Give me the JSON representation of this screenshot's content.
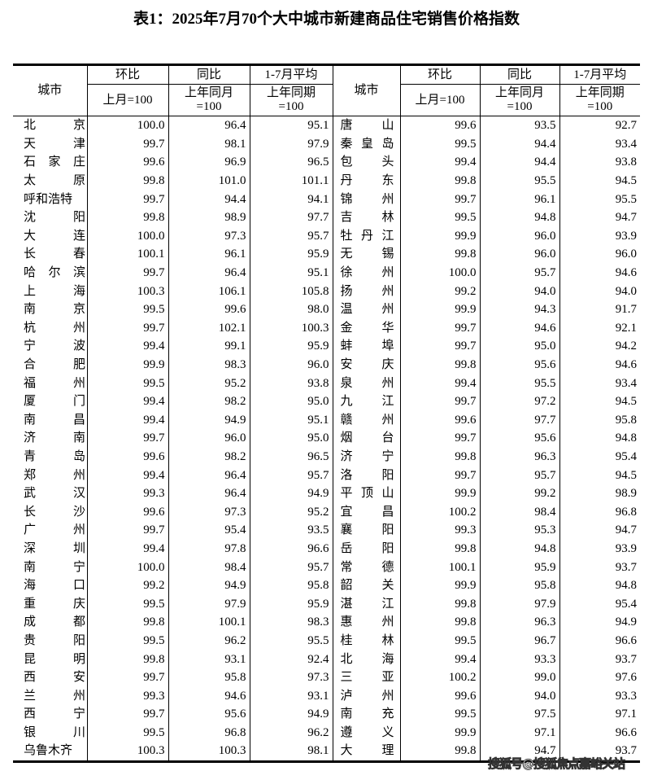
{
  "title": "表1：2025年7月70个大中城市新建商品住宅销售价格指数",
  "header": {
    "city": "城市",
    "mom": "环比",
    "yoy": "同比",
    "avg": "1-7月平均",
    "mom_base": "上月=100",
    "yoy_base_1": "上年同月",
    "yoy_base_2": "=100",
    "avg_base_1": "上年同期",
    "avg_base_2": "=100"
  },
  "rows": [
    {
      "left": [
        "北京",
        "100.0",
        "96.4",
        "95.1"
      ],
      "right": [
        "唐山",
        "99.6",
        "93.5",
        "92.7"
      ]
    },
    {
      "left": [
        "天津",
        "99.7",
        "98.1",
        "97.9"
      ],
      "right": [
        "秦皇岛",
        "99.5",
        "94.4",
        "93.4"
      ]
    },
    {
      "left": [
        "石家庄",
        "99.6",
        "96.9",
        "96.5"
      ],
      "right": [
        "包头",
        "99.4",
        "94.4",
        "93.8"
      ]
    },
    {
      "left": [
        "太原",
        "99.8",
        "101.0",
        "101.1"
      ],
      "right": [
        "丹东",
        "99.8",
        "95.5",
        "94.5"
      ]
    },
    {
      "left": [
        "呼和浩特",
        "99.7",
        "94.4",
        "94.1"
      ],
      "right": [
        "锦州",
        "99.7",
        "96.1",
        "95.5"
      ]
    },
    {
      "left": [
        "沈阳",
        "99.8",
        "98.9",
        "97.7"
      ],
      "right": [
        "吉林",
        "99.5",
        "94.8",
        "94.7"
      ]
    },
    {
      "left": [
        "大连",
        "100.0",
        "97.3",
        "95.7"
      ],
      "right": [
        "牡丹江",
        "99.9",
        "96.0",
        "93.9"
      ]
    },
    {
      "left": [
        "长春",
        "100.1",
        "96.1",
        "95.9"
      ],
      "right": [
        "无锡",
        "99.8",
        "96.0",
        "96.0"
      ]
    },
    {
      "left": [
        "哈尔滨",
        "99.7",
        "96.4",
        "95.1"
      ],
      "right": [
        "徐州",
        "100.0",
        "95.7",
        "94.6"
      ]
    },
    {
      "left": [
        "上海",
        "100.3",
        "106.1",
        "105.8"
      ],
      "right": [
        "扬州",
        "99.2",
        "94.0",
        "94.0"
      ]
    },
    {
      "left": [
        "南京",
        "99.5",
        "99.6",
        "98.0"
      ],
      "right": [
        "温州",
        "99.9",
        "94.3",
        "91.7"
      ]
    },
    {
      "left": [
        "杭州",
        "99.7",
        "102.1",
        "100.3"
      ],
      "right": [
        "金华",
        "99.7",
        "94.6",
        "92.1"
      ]
    },
    {
      "left": [
        "宁波",
        "99.4",
        "99.1",
        "95.9"
      ],
      "right": [
        "蚌埠",
        "99.7",
        "95.0",
        "94.2"
      ]
    },
    {
      "left": [
        "合肥",
        "99.9",
        "98.3",
        "96.0"
      ],
      "right": [
        "安庆",
        "99.8",
        "95.6",
        "94.6"
      ]
    },
    {
      "left": [
        "福州",
        "99.5",
        "95.2",
        "93.8"
      ],
      "right": [
        "泉州",
        "99.4",
        "95.5",
        "93.4"
      ]
    },
    {
      "left": [
        "厦门",
        "99.4",
        "98.2",
        "95.0"
      ],
      "right": [
        "九江",
        "99.7",
        "97.2",
        "94.5"
      ]
    },
    {
      "left": [
        "南昌",
        "99.4",
        "94.9",
        "95.1"
      ],
      "right": [
        "赣州",
        "99.6",
        "97.7",
        "95.8"
      ]
    },
    {
      "left": [
        "济南",
        "99.7",
        "96.0",
        "95.0"
      ],
      "right": [
        "烟台",
        "99.7",
        "95.6",
        "94.8"
      ]
    },
    {
      "left": [
        "青岛",
        "99.6",
        "98.2",
        "96.5"
      ],
      "right": [
        "济宁",
        "99.8",
        "96.3",
        "95.4"
      ]
    },
    {
      "left": [
        "郑州",
        "99.4",
        "96.4",
        "95.7"
      ],
      "right": [
        "洛阳",
        "99.7",
        "95.7",
        "94.5"
      ]
    },
    {
      "left": [
        "武汉",
        "99.3",
        "96.4",
        "94.9"
      ],
      "right": [
        "平顶山",
        "99.9",
        "99.2",
        "98.9"
      ]
    },
    {
      "left": [
        "长沙",
        "99.6",
        "97.3",
        "95.2"
      ],
      "right": [
        "宜昌",
        "100.2",
        "98.4",
        "96.8"
      ]
    },
    {
      "left": [
        "广州",
        "99.7",
        "95.4",
        "93.5"
      ],
      "right": [
        "襄阳",
        "99.3",
        "95.3",
        "94.7"
      ]
    },
    {
      "left": [
        "深圳",
        "99.4",
        "97.8",
        "96.6"
      ],
      "right": [
        "岳阳",
        "99.8",
        "94.8",
        "93.9"
      ]
    },
    {
      "left": [
        "南宁",
        "100.0",
        "98.4",
        "95.7"
      ],
      "right": [
        "常德",
        "100.1",
        "95.9",
        "93.7"
      ]
    },
    {
      "left": [
        "海口",
        "99.2",
        "94.9",
        "95.8"
      ],
      "right": [
        "韶关",
        "99.9",
        "95.8",
        "94.8"
      ]
    },
    {
      "left": [
        "重庆",
        "99.5",
        "97.9",
        "95.9"
      ],
      "right": [
        "湛江",
        "99.8",
        "97.9",
        "95.4"
      ]
    },
    {
      "left": [
        "成都",
        "99.8",
        "100.1",
        "98.3"
      ],
      "right": [
        "惠州",
        "99.8",
        "96.3",
        "94.9"
      ]
    },
    {
      "left": [
        "贵阳",
        "99.5",
        "96.2",
        "95.5"
      ],
      "right": [
        "桂林",
        "99.5",
        "96.7",
        "96.6"
      ]
    },
    {
      "left": [
        "昆明",
        "99.8",
        "93.1",
        "92.4"
      ],
      "right": [
        "北海",
        "99.4",
        "93.3",
        "93.7"
      ]
    },
    {
      "left": [
        "西安",
        "99.7",
        "95.8",
        "97.3"
      ],
      "right": [
        "三亚",
        "100.2",
        "99.0",
        "97.6"
      ]
    },
    {
      "left": [
        "兰州",
        "99.3",
        "94.6",
        "93.1"
      ],
      "right": [
        "泸州",
        "99.6",
        "94.0",
        "93.3"
      ]
    },
    {
      "left": [
        "西宁",
        "99.7",
        "95.6",
        "94.9"
      ],
      "right": [
        "南充",
        "99.5",
        "97.5",
        "97.1"
      ]
    },
    {
      "left": [
        "银川",
        "99.5",
        "96.8",
        "96.2"
      ],
      "right": [
        "遵义",
        "99.9",
        "97.1",
        "96.6"
      ]
    },
    {
      "left": [
        "乌鲁木齐",
        "100.3",
        "100.3",
        "98.1"
      ],
      "right": [
        "大理",
        "99.8",
        "94.7",
        "93.7"
      ]
    }
  ],
  "watermark": "搜狐号@搜狐焦点嘉峪关站"
}
